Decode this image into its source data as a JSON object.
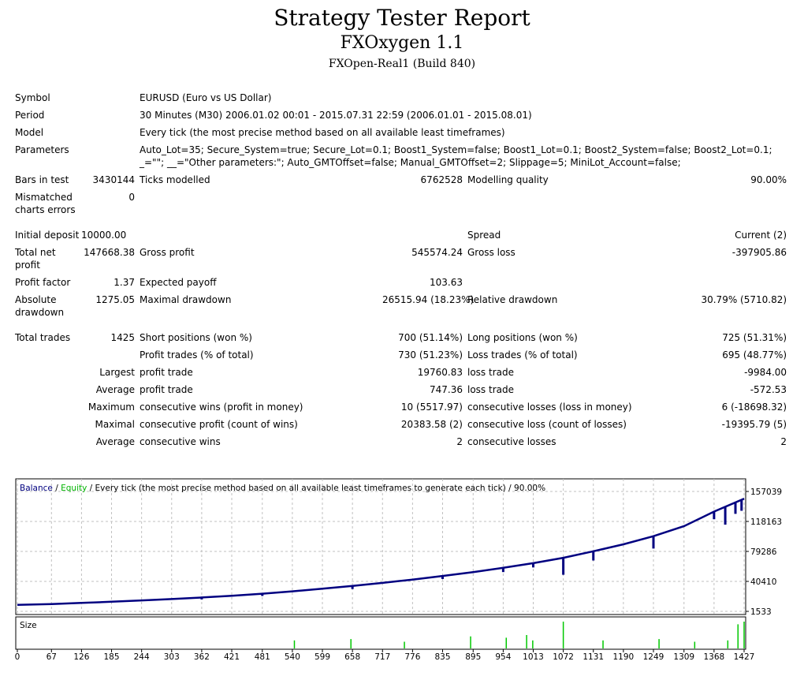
{
  "header": {
    "title": "Strategy Tester Report",
    "expert": "FXOxygen 1.1",
    "server": "FXOpen-Real1 (Build 840)"
  },
  "report": {
    "symbol_label": "Symbol",
    "symbol": "EURUSD (Euro vs US Dollar)",
    "period_label": "Period",
    "period": "30 Minutes (M30) 2006.01.02 00:01 - 2015.07.31 22:59 (2006.01.01 - 2015.08.01)",
    "model_label": "Model",
    "model": "Every tick (the most precise method based on all available least timeframes)",
    "params_label": "Parameters",
    "params_line1": "Auto_Lot=35; Secure_System=true; Secure_Lot=0.1; Boost1_System=false; Boost1_Lot=0.1; Boost2_System=false; Boost2_Lot=0.1;",
    "params_line2": "_=\"\"; __=\"Other parameters:\"; Auto_GMTOffset=false; Manual_GMTOffset=2; Slippage=5; MiniLot_Account=false;",
    "bars_label": "Bars in test",
    "bars": "3430144",
    "ticks_label": "Ticks modelled",
    "ticks": "6762528",
    "quality_label": "Modelling quality",
    "quality": "90.00%",
    "mismatch_label": "Mismatched charts errors",
    "mismatch": "0",
    "deposit_label": "Initial deposit",
    "deposit": "10000.00",
    "spread_label": "Spread",
    "spread": "Current (2)",
    "net_label": "Total net profit",
    "net": "147668.38",
    "gross_profit_label": "Gross profit",
    "gross_profit": "545574.24",
    "gross_loss_label": "Gross loss",
    "gross_loss": "-397905.86",
    "pf_label": "Profit factor",
    "pf": "1.37",
    "payoff_label": "Expected payoff",
    "payoff": "103.63",
    "abs_dd_label": "Absolute drawdown",
    "abs_dd": "1275.05",
    "max_dd_label": "Maximal drawdown",
    "max_dd": "26515.94 (18.23%)",
    "rel_dd_label": "Relative drawdown",
    "rel_dd": "30.79% (5710.82)",
    "trades_label": "Total trades",
    "trades": "1425",
    "short_label": "Short positions (won %)",
    "short": "700 (51.14%)",
    "long_label": "Long positions (won %)",
    "long": "725 (51.31%)",
    "profit_trades_label": "Profit trades (% of total)",
    "profit_trades": "730 (51.23%)",
    "loss_trades_label": "Loss trades (% of total)",
    "loss_trades": "695 (48.77%)",
    "largest_label": "Largest",
    "average_label": "Average",
    "maximum_label": "Maximum",
    "maximal_label": "Maximal",
    "profit_trade_label": "profit trade",
    "loss_trade_label": "loss trade",
    "largest_profit": "19760.83",
    "largest_loss": "-9984.00",
    "average_profit": "747.36",
    "average_loss": "-572.53",
    "cons_wins_money_label": "consecutive wins (profit in money)",
    "cons_wins_money": "10 (5517.97)",
    "cons_losses_money_label": "consecutive losses (loss in money)",
    "cons_losses_money": "6 (-18698.32)",
    "cons_profit_count_label": "consecutive profit (count of wins)",
    "cons_profit_count": "20383.58 (2)",
    "cons_loss_count_label": "consecutive loss (count of losses)",
    "cons_loss_count": "-19395.79 (5)",
    "cons_wins_label": "consecutive wins",
    "cons_wins": "2",
    "cons_losses_label": "consecutive losses",
    "cons_losses": "2"
  },
  "chart_data": {
    "type": "line",
    "legend": {
      "balance": "Balance",
      "sep1": " / ",
      "equity": "Equity",
      "rest": " / Every tick (the most precise method based on all available least timeframes to generate each tick) / 90.00%"
    },
    "size_label": "Size",
    "ylim": [
      1533,
      157039
    ],
    "y_ticks": [
      "1533",
      "40410",
      "79286",
      "118163",
      "157039"
    ],
    "x_ticks": [
      "0",
      "67",
      "126",
      "185",
      "244",
      "303",
      "362",
      "421",
      "481",
      "540",
      "599",
      "658",
      "717",
      "776",
      "835",
      "895",
      "954",
      "1013",
      "1072",
      "1131",
      "1190",
      "1249",
      "1309",
      "1368",
      "1427"
    ],
    "xlim": [
      0,
      1427
    ],
    "series": [
      {
        "name": "Balance",
        "color": "#000080",
        "x": [
          0,
          67,
          126,
          185,
          244,
          303,
          362,
          421,
          481,
          540,
          599,
          658,
          717,
          776,
          835,
          895,
          954,
          1013,
          1072,
          1131,
          1190,
          1249,
          1309,
          1368,
          1427
        ],
        "values": [
          10000,
          11000,
          12500,
          14000,
          15800,
          17500,
          19500,
          21800,
          24500,
          27500,
          31000,
          34500,
          38500,
          42800,
          47500,
          52500,
          58000,
          64000,
          71000,
          79500,
          88500,
          99000,
          112000,
          131000,
          147668
        ]
      }
    ],
    "equity_dips": [
      {
        "x": 362,
        "y": 17000
      },
      {
        "x": 481,
        "y": 21500
      },
      {
        "x": 658,
        "y": 30500
      },
      {
        "x": 835,
        "y": 43500
      },
      {
        "x": 954,
        "y": 52500
      },
      {
        "x": 1013,
        "y": 58500
      },
      {
        "x": 1072,
        "y": 49000
      },
      {
        "x": 1131,
        "y": 67500
      },
      {
        "x": 1249,
        "y": 83000
      },
      {
        "x": 1368,
        "y": 121000
      },
      {
        "x": 1390,
        "y": 114000
      },
      {
        "x": 1410,
        "y": 128000
      },
      {
        "x": 1422,
        "y": 132000
      }
    ],
    "size_bars": [
      {
        "x": 544,
        "v": 0.3
      },
      {
        "x": 655,
        "v": 0.35
      },
      {
        "x": 760,
        "v": 0.25
      },
      {
        "x": 890,
        "v": 0.45
      },
      {
        "x": 960,
        "v": 0.4
      },
      {
        "x": 1000,
        "v": 0.5
      },
      {
        "x": 1012,
        "v": 0.3
      },
      {
        "x": 1072,
        "v": 1.0
      },
      {
        "x": 1150,
        "v": 0.3
      },
      {
        "x": 1260,
        "v": 0.35
      },
      {
        "x": 1330,
        "v": 0.25
      },
      {
        "x": 1395,
        "v": 0.3
      },
      {
        "x": 1415,
        "v": 0.9
      },
      {
        "x": 1427,
        "v": 1.0
      }
    ],
    "colors": {
      "balance": "#000080",
      "equity": "#00b400",
      "size": "#00c800",
      "frame": "#000000",
      "grid": "#c0c0c0"
    }
  }
}
